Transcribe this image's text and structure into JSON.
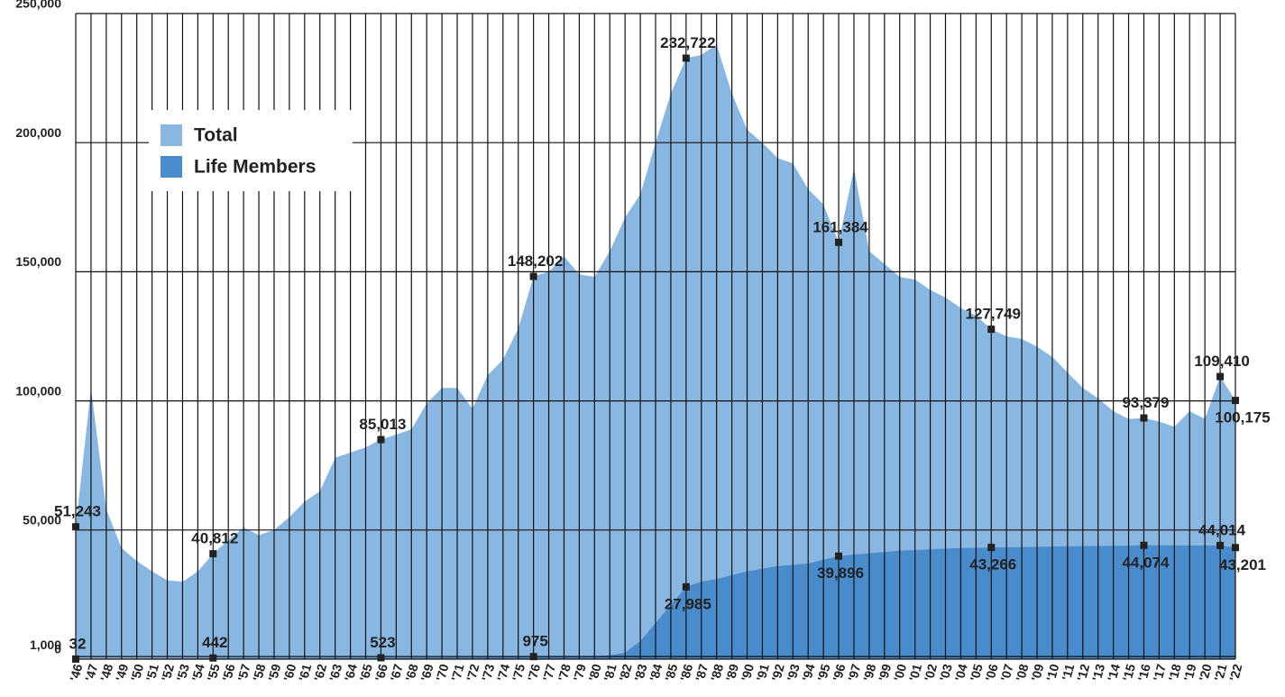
{
  "chart_data": {
    "type": "area",
    "categories": [
      "'46",
      "'47",
      "'48",
      "'49",
      "'50",
      "'51",
      "'52",
      "'53",
      "'54",
      "'55",
      "'56",
      "'57",
      "'58",
      "'59",
      "'60",
      "'61",
      "'62",
      "'63",
      "'64",
      "'65",
      "'66",
      "'67",
      "'68",
      "'69",
      "'70",
      "'71",
      "'72",
      "'73",
      "'74",
      "'75",
      "'76",
      "'77",
      "'78",
      "'79",
      "'80",
      "'81",
      "'82",
      "'83",
      "'84",
      "'85",
      "'86",
      "'87",
      "'88",
      "'89",
      "'90",
      "'91",
      "'92",
      "'93",
      "'94",
      "'95",
      "'96",
      "'97",
      "'98",
      "'99",
      "'00",
      "'01",
      "'02",
      "'03",
      "'04",
      "'05",
      "'06",
      "'07",
      "'08",
      "'09",
      "'10",
      "'11",
      "'12",
      "'13",
      "'14",
      "'15",
      "'16",
      "'17",
      "'18",
      "'19",
      "'20",
      "'21",
      "'22"
    ],
    "series": [
      {
        "name": "Total",
        "color": "#8ab6e2",
        "values": [
          51243,
          105000,
          58000,
          43000,
          38000,
          34000,
          30500,
          30000,
          34000,
          40812,
          46000,
          51000,
          48000,
          50000,
          55000,
          61000,
          65000,
          78000,
          80000,
          82000,
          85013,
          87000,
          89000,
          99000,
          105000,
          105000,
          97000,
          110000,
          116000,
          128000,
          148202,
          150000,
          156000,
          149000,
          148000,
          158000,
          171000,
          180000,
          200000,
          219000,
          232722,
          234000,
          238000,
          219000,
          205000,
          200000,
          194000,
          192000,
          182000,
          176000,
          161384,
          190000,
          158000,
          153000,
          148000,
          147000,
          143000,
          140000,
          136000,
          133000,
          127749,
          125000,
          124000,
          121000,
          117000,
          111000,
          105000,
          101000,
          96000,
          93000,
          93379,
          92000,
          90000,
          96000,
          93000,
          109410,
          100175
        ],
        "value_labels": [
          "51,243",
          null,
          null,
          null,
          null,
          null,
          null,
          null,
          null,
          "40,812",
          null,
          null,
          null,
          null,
          null,
          null,
          null,
          null,
          null,
          null,
          "85,013",
          null,
          null,
          null,
          null,
          null,
          null,
          null,
          null,
          null,
          "148,202",
          null,
          null,
          null,
          null,
          null,
          null,
          null,
          null,
          null,
          "232,722",
          null,
          null,
          null,
          null,
          null,
          null,
          null,
          null,
          null,
          "161,384",
          null,
          null,
          null,
          null,
          null,
          null,
          null,
          null,
          null,
          "127,749",
          null,
          null,
          null,
          null,
          null,
          null,
          null,
          null,
          null,
          "93,379",
          null,
          null,
          null,
          null,
          "109,410",
          "100,175"
        ]
      },
      {
        "name": "Life Members",
        "color": "#4a8bcb",
        "values": [
          32,
          50,
          100,
          150,
          200,
          250,
          300,
          350,
          400,
          442,
          450,
          460,
          470,
          480,
          490,
          495,
          500,
          505,
          510,
          515,
          523,
          550,
          600,
          650,
          700,
          750,
          800,
          850,
          900,
          950,
          975,
          1000,
          1000,
          1100,
          1200,
          1500,
          2500,
          7000,
          14000,
          21000,
          27985,
          30000,
          31000,
          32500,
          34000,
          35000,
          36000,
          36500,
          37000,
          38500,
          39896,
          40500,
          41000,
          41500,
          42000,
          42200,
          42500,
          42800,
          43000,
          43100,
          43266,
          43300,
          43400,
          43500,
          43600,
          43700,
          43750,
          43800,
          43850,
          43900,
          44074,
          44100,
          44050,
          44000,
          44000,
          44014,
          43201
        ],
        "value_labels": [
          "32",
          null,
          null,
          null,
          null,
          null,
          null,
          null,
          null,
          "442",
          null,
          null,
          null,
          null,
          null,
          null,
          null,
          null,
          null,
          null,
          "523",
          null,
          null,
          null,
          null,
          null,
          null,
          null,
          null,
          null,
          "975",
          null,
          null,
          null,
          null,
          null,
          null,
          null,
          null,
          null,
          "27,985",
          null,
          null,
          null,
          null,
          null,
          null,
          null,
          null,
          null,
          "39,896",
          null,
          null,
          null,
          null,
          null,
          null,
          null,
          null,
          null,
          "43,266",
          null,
          null,
          null,
          null,
          null,
          null,
          null,
          null,
          null,
          "44,074",
          null,
          null,
          null,
          null,
          "44,014",
          "43,201"
        ]
      }
    ],
    "ylim": [
      0,
      250000
    ],
    "yticks": [
      0,
      {
        "value": 1000,
        "label": "1,000"
      },
      {
        "value": 50000,
        "label": "50,000"
      },
      {
        "value": 100000,
        "label": "100,000"
      },
      {
        "value": 150000,
        "label": "150,000"
      },
      {
        "value": 200000,
        "label": "200,000"
      },
      {
        "value": 250000,
        "label": "250,000"
      }
    ],
    "grid": true,
    "legend": "upper left"
  }
}
